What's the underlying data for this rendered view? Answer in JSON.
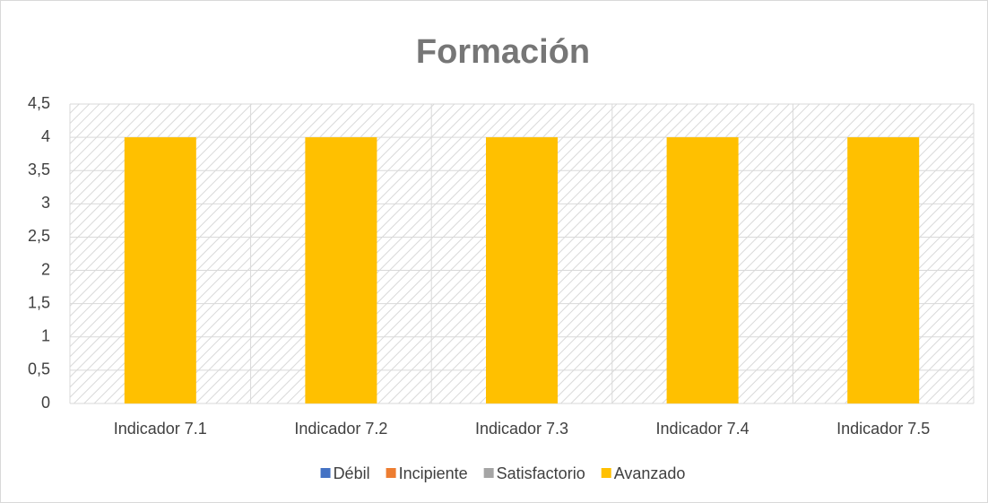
{
  "chart_data": {
    "type": "bar",
    "title": "Formación",
    "categories": [
      "Indicador 7.1",
      "Indicador 7.2",
      "Indicador 7.3",
      "Indicador 7.4",
      "Indicador 7.5"
    ],
    "series": [
      {
        "name": "Débil",
        "color": "#4472c4",
        "values": [
          null,
          null,
          null,
          null,
          null
        ]
      },
      {
        "name": "Incipiente",
        "color": "#ed7d31",
        "values": [
          null,
          null,
          null,
          null,
          null
        ]
      },
      {
        "name": "Satisfactorio",
        "color": "#a5a5a5",
        "values": [
          null,
          null,
          null,
          null,
          null
        ]
      },
      {
        "name": "Avanzado",
        "color": "#ffc000",
        "values": [
          4,
          4,
          4,
          4,
          4
        ]
      }
    ],
    "ylim": [
      0,
      4.5
    ],
    "yticks": [
      0,
      {
        "value": 0.5,
        "label": "0,5"
      },
      1,
      {
        "value": 1.5,
        "label": "1,5"
      },
      2,
      {
        "value": 2.5,
        "label": "2,5"
      },
      3,
      {
        "value": 3.5,
        "label": "3,5"
      },
      4,
      {
        "value": 4.5,
        "label": "4,5"
      }
    ],
    "grid": true,
    "legend": "bottom"
  }
}
